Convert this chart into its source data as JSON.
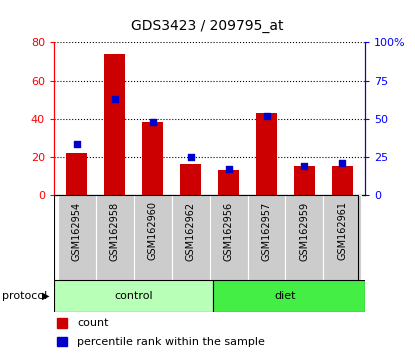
{
  "title": "GDS3423 / 209795_at",
  "samples": [
    "GSM162954",
    "GSM162958",
    "GSM162960",
    "GSM162962",
    "GSM162956",
    "GSM162957",
    "GSM162959",
    "GSM162961"
  ],
  "counts": [
    22,
    74,
    38,
    16,
    13,
    43,
    15,
    15
  ],
  "percentile_ranks": [
    33,
    63,
    48,
    25,
    17,
    52,
    19,
    21
  ],
  "bar_color": "#cc0000",
  "dot_color": "#0000cc",
  "left_ylim": [
    0,
    80
  ],
  "right_ylim": [
    0,
    100
  ],
  "left_yticks": [
    0,
    20,
    40,
    60,
    80
  ],
  "right_yticks": [
    0,
    25,
    50,
    75,
    100
  ],
  "right_yticklabels": [
    "0",
    "25",
    "50",
    "75",
    "100%"
  ],
  "control_color": "#b8ffb8",
  "diet_color": "#44ee44",
  "xlabel_bg": "#cccccc",
  "legend_count_label": "count",
  "legend_pct_label": "percentile rank within the sample",
  "protocol_label": "protocol",
  "title_fontsize": 10,
  "axis_fontsize": 8,
  "label_fontsize": 7,
  "legend_fontsize": 8
}
